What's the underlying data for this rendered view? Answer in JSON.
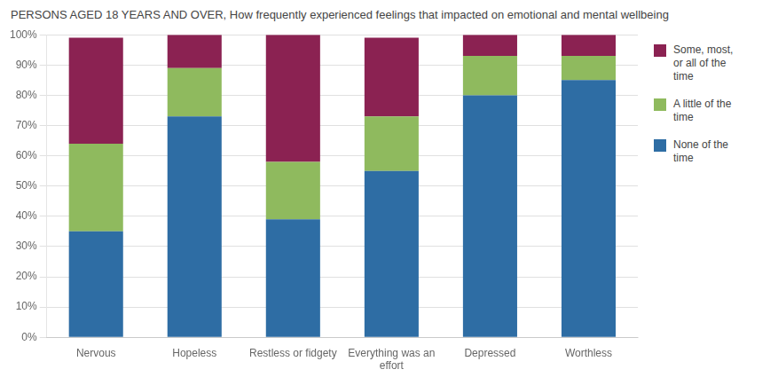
{
  "chart_data": {
    "type": "bar",
    "title": "PERSONS AGED 18 YEARS AND OVER, How frequently experienced feelings that impacted on emotional and mental wellbeing",
    "categories": [
      "Nervous",
      "Hopeless",
      "Restless or fidgety",
      "Everything was an\neffort",
      "Depressed",
      "Worthless"
    ],
    "series": [
      {
        "name": "None of the\ntime",
        "color": "#2e6da4",
        "values": [
          35,
          73,
          39,
          55,
          80,
          85
        ]
      },
      {
        "name": "A little of the\ntime",
        "color": "#8fba5e",
        "values": [
          29,
          16,
          19,
          18,
          13,
          8
        ]
      },
      {
        "name": "Some, most,\nor all of the\ntime",
        "color": "#8b2252",
        "values": [
          35,
          11,
          42,
          26,
          7,
          7
        ]
      }
    ],
    "stacked": true,
    "ylim": [
      0,
      100
    ],
    "yticks": [
      {
        "value": 0,
        "label": "0%"
      },
      {
        "value": 10,
        "label": "10%"
      },
      {
        "value": 20,
        "label": "20%"
      },
      {
        "value": 30,
        "label": "30%"
      },
      {
        "value": 40,
        "label": "40%"
      },
      {
        "value": 50,
        "label": "50%"
      },
      {
        "value": 60,
        "label": "60%"
      },
      {
        "value": 70,
        "label": "70%"
      },
      {
        "value": 80,
        "label": "80%"
      },
      {
        "value": 90,
        "label": "90%"
      },
      {
        "value": 100,
        "label": "100%"
      }
    ],
    "grid": true,
    "legend": "right"
  }
}
